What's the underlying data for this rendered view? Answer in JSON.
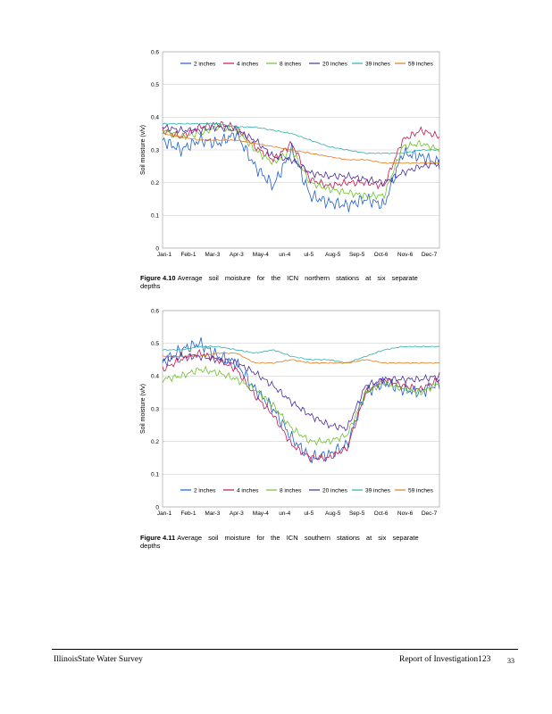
{
  "figures": [
    {
      "caption_label": "Figure 4.10",
      "caption_text": "Average soil moisture for the ICN northern stations at six separate depths",
      "legend_position": "top"
    },
    {
      "caption_label": "Figure 4.11",
      "caption_text": "Average soil moisture for the ICN southern stations at six separate depths",
      "legend_position": "bottom"
    }
  ],
  "chart_data": [
    {
      "type": "line",
      "ylabel": "Soil moisture (v/v)",
      "ylim": [
        0,
        0.6
      ],
      "yticks": [
        "0",
        "0.1",
        "0.2",
        "0.3",
        "0.4",
        "0.5",
        "0.6"
      ],
      "xlabels": [
        "Jan-1",
        "Feb-1",
        "Mar-3",
        "Apr-3",
        "May-4",
        "un-4",
        "ul-5",
        "Aug-5",
        "Sep-5",
        "Oct-6",
        "Nov-6",
        "Dec-7"
      ],
      "grid": true,
      "legend": "top",
      "series": [
        {
          "name": "2 inches",
          "color": "#1f5fd0",
          "values": [
            0.33,
            0.3,
            0.33,
            0.32,
            0.35,
            0.25,
            0.19,
            0.3,
            0.16,
            0.14,
            0.13,
            0.15,
            0.13,
            0.29,
            0.28,
            0.26
          ]
        },
        {
          "name": "4 inches",
          "color": "#c0174f",
          "values": [
            0.36,
            0.34,
            0.37,
            0.38,
            0.37,
            0.31,
            0.27,
            0.32,
            0.21,
            0.19,
            0.2,
            0.2,
            0.19,
            0.33,
            0.36,
            0.34
          ]
        },
        {
          "name": "8 inches",
          "color": "#6fbf2c",
          "values": [
            0.36,
            0.34,
            0.35,
            0.37,
            0.36,
            0.3,
            0.26,
            0.3,
            0.2,
            0.18,
            0.17,
            0.16,
            0.16,
            0.31,
            0.32,
            0.3
          ]
        },
        {
          "name": "20 inches",
          "color": "#4b2aa0",
          "values": [
            0.37,
            0.36,
            0.36,
            0.37,
            0.36,
            0.33,
            0.28,
            0.27,
            0.23,
            0.22,
            0.22,
            0.21,
            0.2,
            0.23,
            0.25,
            0.26
          ]
        },
        {
          "name": "39 inches",
          "color": "#2ab0a8",
          "values": [
            0.38,
            0.38,
            0.38,
            0.38,
            0.37,
            0.37,
            0.36,
            0.35,
            0.33,
            0.31,
            0.3,
            0.29,
            0.29,
            0.29,
            0.3,
            0.3
          ]
        },
        {
          "name": "59 inches",
          "color": "#e07a1c",
          "values": [
            0.35,
            0.34,
            0.33,
            0.33,
            0.33,
            0.32,
            0.31,
            0.3,
            0.29,
            0.28,
            0.27,
            0.27,
            0.26,
            0.26,
            0.26,
            0.26
          ]
        }
      ]
    },
    {
      "type": "line",
      "ylabel": "Soil moisture (v/v)",
      "ylim": [
        0,
        0.6
      ],
      "yticks": [
        "0",
        "0.1",
        "0.2",
        "0.3",
        "0.4",
        "0.5",
        "0.6"
      ],
      "xlabels": [
        "Jan-1",
        "Feb-1",
        "Mar-3",
        "Apr-3",
        "May-4",
        "un-4",
        "ul-5",
        "Aug-5",
        "Sep-5",
        "Oct-6",
        "Nov-6",
        "Dec-7"
      ],
      "grid": true,
      "legend": "bottom",
      "series": [
        {
          "name": "2 inches",
          "color": "#1f5fd0",
          "values": [
            0.44,
            0.48,
            0.5,
            0.46,
            0.44,
            0.36,
            0.3,
            0.21,
            0.15,
            0.16,
            0.19,
            0.35,
            0.38,
            0.36,
            0.35,
            0.38
          ]
        },
        {
          "name": "4 inches",
          "color": "#c0174f",
          "values": [
            0.42,
            0.45,
            0.47,
            0.45,
            0.42,
            0.34,
            0.28,
            0.19,
            0.15,
            0.15,
            0.18,
            0.35,
            0.39,
            0.37,
            0.36,
            0.39
          ]
        },
        {
          "name": "8 inches",
          "color": "#6fbf2c",
          "values": [
            0.39,
            0.4,
            0.42,
            0.41,
            0.39,
            0.36,
            0.31,
            0.24,
            0.2,
            0.2,
            0.22,
            0.35,
            0.38,
            0.36,
            0.35,
            0.38
          ]
        },
        {
          "name": "20 inches",
          "color": "#4b2aa0",
          "values": [
            0.45,
            0.46,
            0.46,
            0.45,
            0.44,
            0.41,
            0.37,
            0.32,
            0.28,
            0.25,
            0.24,
            0.37,
            0.39,
            0.39,
            0.39,
            0.4
          ]
        },
        {
          "name": "39 inches",
          "color": "#2ab0a8",
          "values": [
            0.48,
            0.48,
            0.49,
            0.49,
            0.48,
            0.47,
            0.48,
            0.46,
            0.45,
            0.45,
            0.44,
            0.46,
            0.48,
            0.49,
            0.49,
            0.49
          ]
        },
        {
          "name": "59 inches",
          "color": "#e07a1c",
          "values": [
            0.46,
            0.46,
            0.46,
            0.47,
            0.47,
            0.44,
            0.44,
            0.45,
            0.44,
            0.44,
            0.44,
            0.45,
            0.44,
            0.44,
            0.44,
            0.44
          ]
        }
      ]
    }
  ],
  "footer": {
    "left": "IllinoisState Water Survey",
    "center": "Report of Investigation123",
    "page": "33"
  }
}
